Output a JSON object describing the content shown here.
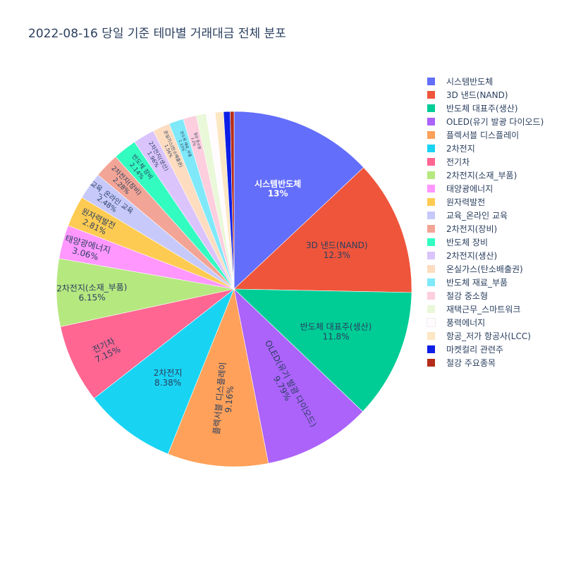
{
  "chart_data": {
    "type": "pie",
    "title": "2022-08-16 당일 기준 테마별 거래대금 전체 분포",
    "legend_position": "right",
    "slices": [
      {
        "label": "시스템반도체",
        "percent": 13,
        "percent_label": "13%",
        "color": "#636efa"
      },
      {
        "label": "3D 낸드(NAND)",
        "percent": 12.3,
        "percent_label": "12.3%",
        "color": "#EF553B"
      },
      {
        "label": "반도체 대표주(생산)",
        "percent": 11.8,
        "percent_label": "11.8%",
        "color": "#00cc96"
      },
      {
        "label": "OLED(유기 발광 다이오드)",
        "percent": 9.79,
        "percent_label": "9.79%",
        "color": "#ab63fa"
      },
      {
        "label": "플렉서블 디스플레이",
        "percent": 9.16,
        "percent_label": "9.16%",
        "color": "#FFA15A"
      },
      {
        "label": "2차전지",
        "percent": 8.38,
        "percent_label": "8.38%",
        "color": "#19d3f3"
      },
      {
        "label": "전기차",
        "percent": 7.15,
        "percent_label": "7.15%",
        "color": "#FF6692"
      },
      {
        "label": "2차전지(소재_부품)",
        "percent": 6.15,
        "percent_label": "6.15%",
        "color": "#B6E880"
      },
      {
        "label": "태양광에너지",
        "percent": 3.06,
        "percent_label": "3.06%",
        "color": "#FF97FF"
      },
      {
        "label": "원자력발전",
        "percent": 2.81,
        "percent_label": "2.81%",
        "color": "#FECB52"
      },
      {
        "label": "교육_온라인 교육",
        "percent": 2.48,
        "percent_label": "2.48%",
        "color": "#c6c9fa"
      },
      {
        "label": "2차전지(장비)",
        "percent": 2.28,
        "percent_label": "2.28%",
        "color": "#f2a596"
      },
      {
        "label": "반도체 장비",
        "percent": 2.14,
        "percent_label": "2.14%",
        "color": "#33fcc1"
      },
      {
        "label": "2차전지(생산)",
        "percent": 1.96,
        "percent_label": "1.96%",
        "color": "#dbc4fc"
      },
      {
        "label": "온실가스(탄소배출권)",
        "percent": 1.56,
        "percent_label": "1.56%",
        "color": "#fddcc0"
      },
      {
        "label": "반도체 재료_부품",
        "percent": 1.33,
        "percent_label": "1.33%",
        "color": "#80e9f9"
      },
      {
        "label": "철강 중소형",
        "percent": 1.2,
        "percent_label": "1.2%",
        "color": "#fccede"
      },
      {
        "label": "재택근무_스마트워크",
        "percent": 0.9,
        "percent_label": "",
        "color": "#e9f8d8"
      },
      {
        "label": "풍력에너지",
        "percent": 0.82,
        "percent_label": "",
        "color": "#fffbff"
      },
      {
        "label": "항공_저가 항공사(LCC)",
        "percent": 0.75,
        "percent_label": "",
        "color": "#fde7c3"
      },
      {
        "label": "마켓컬리 관련주",
        "percent": 0.6,
        "percent_label": "",
        "color": "#0d1ee6"
      },
      {
        "label": "철강 주요종목",
        "percent": 0.35,
        "percent_label": "",
        "color": "#b52d1a"
      }
    ]
  }
}
